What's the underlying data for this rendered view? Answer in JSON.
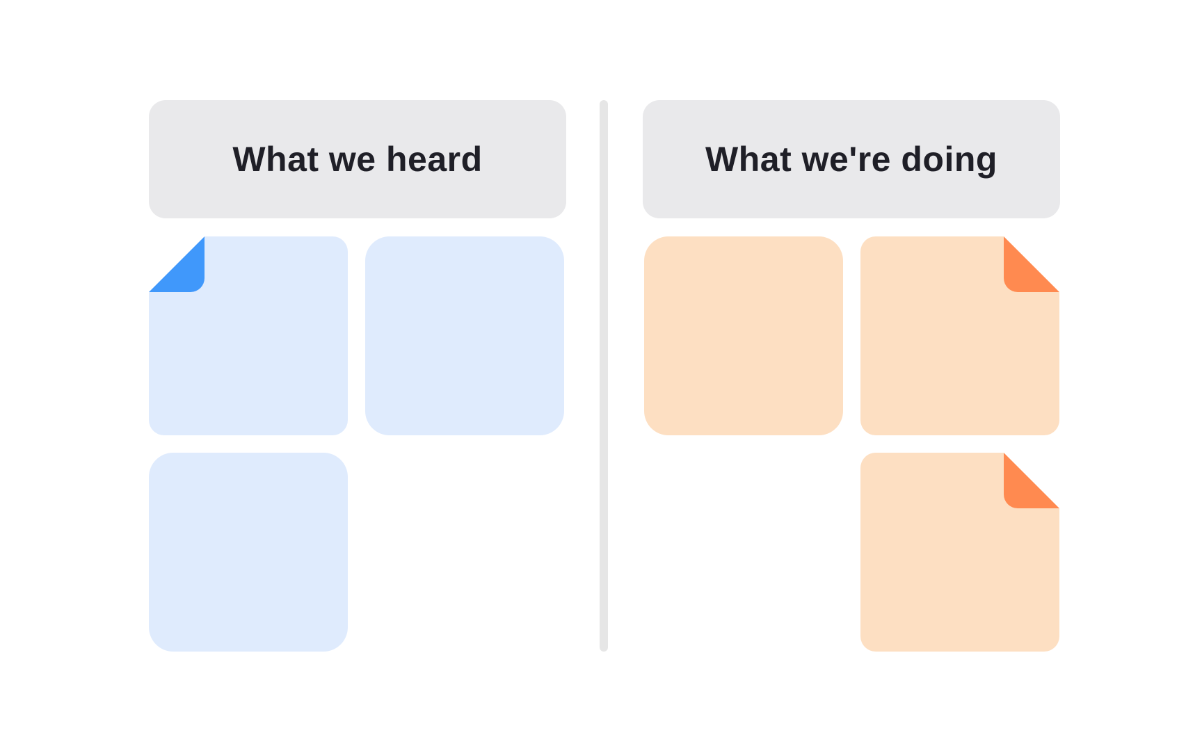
{
  "left_column": {
    "title": "What we heard",
    "card_color": "#DFEBFD",
    "fold_color": "#4098FB"
  },
  "right_column": {
    "title": "What we're doing",
    "card_color": "#FDDFC2",
    "fold_color": "#FF8A50"
  },
  "header_color": "#E9E9EB",
  "text_color": "#1F1F27"
}
